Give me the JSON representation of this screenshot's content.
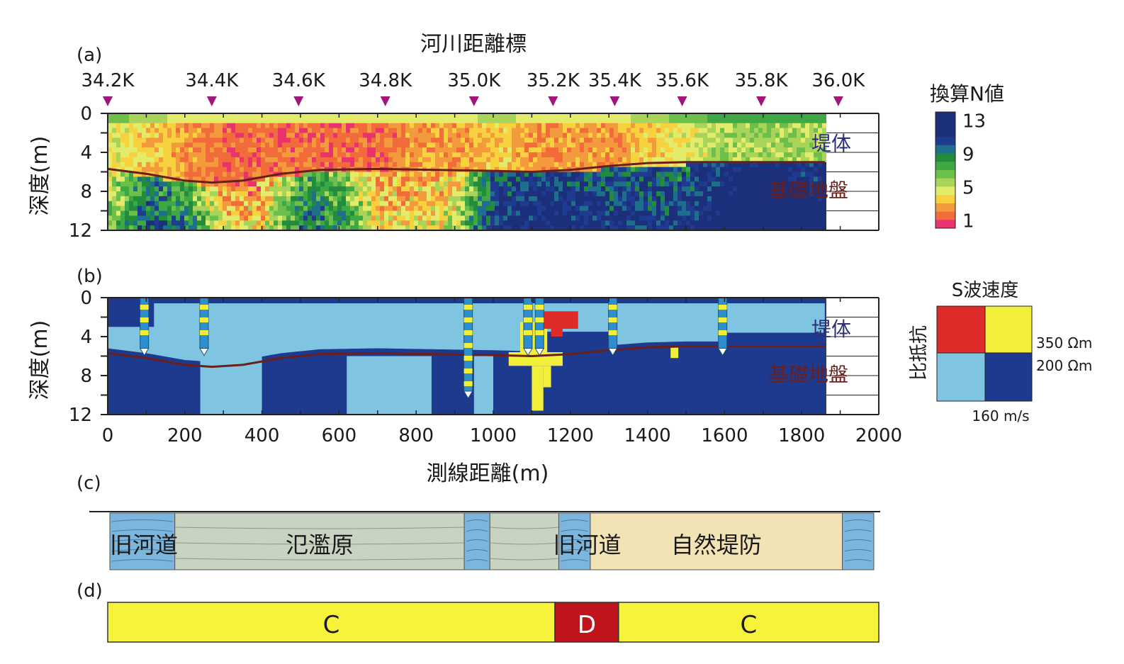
{
  "top_title": "河川距離標",
  "panel_labels": [
    "(a)",
    "(b)",
    "(c)",
    "(d)"
  ],
  "river_kp": {
    "labels": [
      "34.2K",
      "34.4K",
      "34.6K",
      "34.8K",
      "35.0K",
      "35.2K",
      "35.4K",
      "35.6K",
      "35.8K",
      "36.0K"
    ],
    "distance_m": [
      0,
      270,
      495,
      720,
      950,
      1155,
      1315,
      1490,
      1695,
      1895
    ],
    "marker_color": "#a0167a"
  },
  "depth_axis": {
    "label": "深度(m)",
    "ticks": [
      0,
      4,
      8,
      12
    ],
    "range": [
      0,
      12
    ]
  },
  "distance_axis": {
    "label": "測線距離(m)",
    "ticks": [
      0,
      200,
      400,
      600,
      800,
      1000,
      1200,
      1400,
      1600,
      1800,
      2000
    ],
    "range": [
      0,
      2000
    ]
  },
  "layer_labels": {
    "embankment": "堤体",
    "foundation": "基礎地盤"
  },
  "colors": {
    "boundary_line": "#6b1f1a",
    "n_scale": [
      "#b34fa6",
      "#e8336e",
      "#f26b3a",
      "#f39a3c",
      "#f7d23e",
      "#e3ec6a",
      "#a8d45a",
      "#6bbf4a",
      "#3ea845",
      "#238c3c",
      "#1d6f8c",
      "#1f3b8f",
      "#1b2f7a"
    ],
    "class_red": "#e02b2b",
    "class_yellow": "#f2ef3a",
    "class_lightblue": "#7fc4e0",
    "class_darkblue": "#1e3a8f",
    "old_channel": "#7db6dc",
    "floodplain": "#c9d3c2",
    "levee": "#f1e3b4",
    "rating_C": "#f7f23a",
    "rating_D": "#c0141c"
  },
  "chart_data": [
    {
      "panel": "(a)",
      "type": "heatmap",
      "ylabel": "深度(m)",
      "ylim": [
        0,
        12
      ],
      "xlim": [
        0,
        2000
      ],
      "top_axis_label": "河川距離標",
      "colorbar": {
        "title": "換算N値",
        "ticks": [
          1,
          5,
          9,
          13
        ],
        "range": [
          0,
          14
        ]
      },
      "boundary_depth": {
        "x": [
          0,
          100,
          200,
          270,
          350,
          450,
          550,
          700,
          850,
          1000,
          1100,
          1200,
          1300,
          1400,
          1500,
          1600,
          1700,
          1800,
          1860
        ],
        "depth": [
          5.7,
          6.2,
          6.9,
          7.1,
          6.9,
          6.2,
          5.8,
          5.7,
          5.8,
          5.9,
          6.0,
          5.8,
          5.4,
          5.1,
          5.0,
          5.0,
          5.0,
          5.0,
          5.0
        ]
      },
      "surface_N_profile": {
        "x": [
          0,
          100,
          200,
          300,
          400,
          500,
          600,
          700,
          800,
          900,
          1000,
          1100,
          1200,
          1300,
          1400,
          1500,
          1600,
          1700,
          1800,
          1860
        ],
        "shallow_N": [
          5,
          4,
          3,
          2,
          2,
          2,
          2,
          2,
          3,
          3,
          4,
          3,
          3,
          3,
          4,
          5,
          6,
          6,
          6,
          6
        ],
        "deep_N": [
          5,
          9,
          8,
          3,
          3,
          8,
          7,
          3,
          3,
          4,
          10,
          11,
          11,
          10,
          10,
          10,
          12,
          13,
          12,
          12
        ]
      }
    },
    {
      "panel": "(b)",
      "type": "heatmap",
      "xlabel": "測線距離(m)",
      "ylabel": "深度(m)",
      "ylim": [
        0,
        12
      ],
      "xlim": [
        0,
        2000
      ],
      "legend": {
        "title": "S波速度",
        "ylabel": "比抵抗",
        "resistivity_ticks": [
          "350 Ωm",
          "200 Ωm"
        ],
        "velocity_tick": "160 m/s",
        "classes": [
          "red",
          "yellow",
          "lightblue",
          "darkblue"
        ]
      },
      "boundary_depth": {
        "x": [
          0,
          100,
          200,
          270,
          350,
          450,
          550,
          700,
          850,
          1000,
          1100,
          1200,
          1300,
          1400,
          1500,
          1600,
          1700,
          1800,
          1860
        ],
        "depth": [
          5.7,
          6.2,
          6.9,
          7.1,
          6.9,
          6.2,
          5.8,
          5.7,
          5.8,
          5.9,
          6.0,
          5.8,
          5.4,
          5.1,
          5.0,
          5.0,
          5.0,
          5.0,
          5.0
        ]
      },
      "boreholes_x_m": [
        95,
        250,
        935,
        1090,
        1120,
        1310,
        1595
      ]
    },
    {
      "panel": "(c)",
      "type": "table",
      "units": [
        {
          "label": "旧河道",
          "type": "old_channel",
          "from_m": 0,
          "to_m": 165
        },
        {
          "label": "氾濫原",
          "type": "floodplain",
          "from_m": 165,
          "to_m": 900
        },
        {
          "label": "",
          "type": "old_channel",
          "from_m": 900,
          "to_m": 965
        },
        {
          "label": "",
          "type": "floodplain",
          "from_m": 965,
          "to_m": 1140
        },
        {
          "label": "旧河道",
          "type": "old_channel",
          "from_m": 1140,
          "to_m": 1220
        },
        {
          "label": "自然堤防",
          "type": "levee",
          "from_m": 1220,
          "to_m": 1860
        },
        {
          "label": "",
          "type": "old_channel",
          "from_m": 1860,
          "to_m": 1940
        }
      ]
    },
    {
      "panel": "(d)",
      "type": "table",
      "segments": [
        {
          "label": "C",
          "from_m": 0,
          "to_m": 1160
        },
        {
          "label": "D",
          "from_m": 1160,
          "to_m": 1325
        },
        {
          "label": "C",
          "from_m": 1325,
          "to_m": 2000
        }
      ]
    }
  ]
}
